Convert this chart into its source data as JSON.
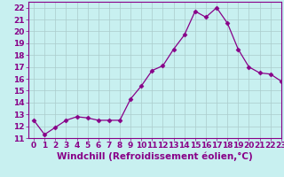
{
  "x": [
    0,
    1,
    2,
    3,
    4,
    5,
    6,
    7,
    8,
    9,
    10,
    11,
    12,
    13,
    14,
    15,
    16,
    17,
    18,
    19,
    20,
    21,
    22,
    23
  ],
  "y": [
    12.5,
    11.3,
    11.9,
    12.5,
    12.8,
    12.7,
    12.5,
    12.5,
    12.5,
    14.3,
    15.4,
    16.7,
    17.1,
    18.5,
    19.7,
    21.7,
    21.2,
    22.0,
    20.7,
    18.5,
    17.0,
    16.5,
    16.4,
    15.8
  ],
  "line_color": "#880088",
  "marker": "D",
  "marker_size": 2.5,
  "bg_color": "#c8f0f0",
  "grid_color": "#aacccc",
  "xlabel": "Windchill (Refroidissement éolien,°C)",
  "ylim": [
    11,
    22.5
  ],
  "xlim": [
    -0.5,
    23
  ],
  "yticks": [
    11,
    12,
    13,
    14,
    15,
    16,
    17,
    18,
    19,
    20,
    21,
    22
  ],
  "xticks": [
    0,
    1,
    2,
    3,
    4,
    5,
    6,
    7,
    8,
    9,
    10,
    11,
    12,
    13,
    14,
    15,
    16,
    17,
    18,
    19,
    20,
    21,
    22,
    23
  ],
  "tick_label_fontsize": 6.5,
  "xlabel_fontsize": 7.5
}
